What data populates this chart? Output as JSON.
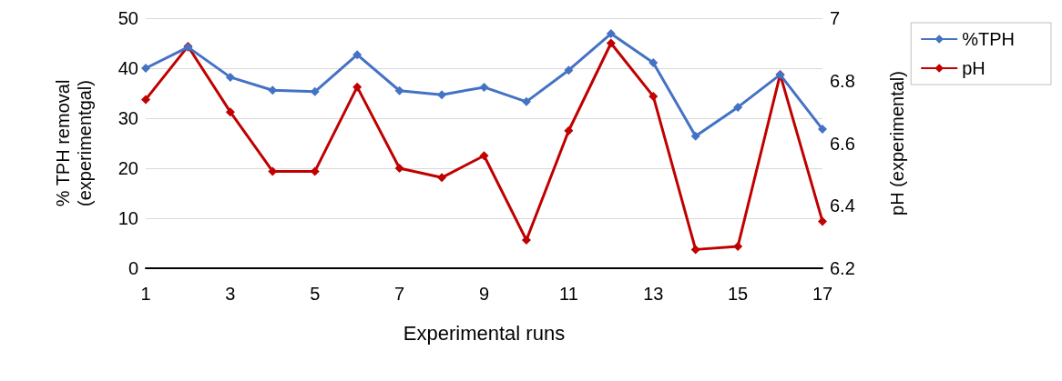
{
  "chart_data": {
    "type": "line",
    "xlabel": "Experimental runs",
    "ylabel": "% TPH removal\n(experimentgal)",
    "y2label": "pH (experimental)",
    "x": [
      1,
      2,
      3,
      4,
      5,
      6,
      7,
      8,
      9,
      10,
      11,
      12,
      13,
      14,
      15,
      16,
      17
    ],
    "xlim": [
      1,
      17
    ],
    "xticks": [
      1,
      3,
      5,
      7,
      9,
      11,
      13,
      15,
      17
    ],
    "ylim": [
      0,
      50
    ],
    "yticks": [
      0,
      10,
      20,
      30,
      40,
      50
    ],
    "y2lim": [
      6.2,
      7
    ],
    "y2ticks": [
      {
        "value": 6.2,
        "label": "6.2"
      },
      {
        "value": 6.4,
        "label": "6.4"
      },
      {
        "value": 6.6,
        "label": "6.6"
      },
      {
        "value": 6.8,
        "label": "6.8"
      },
      {
        "value": 7,
        "label": "7"
      }
    ],
    "series": [
      {
        "name": "%TPH",
        "color": "#4472c4",
        "values": [
          40,
          44.2,
          38.2,
          35.6,
          35.3,
          42.7,
          35.5,
          34.7,
          36.2,
          33.3,
          39.6,
          46.9,
          41.1,
          26.4,
          32.2,
          38.7,
          27.8
        ]
      },
      {
        "name": "pH",
        "color": "#c00000",
        "axis": "y2",
        "values": [
          6.74,
          6.91,
          6.7,
          6.51,
          6.51,
          6.78,
          6.52,
          6.49,
          6.56,
          6.29,
          6.64,
          6.92,
          6.75,
          6.26,
          6.27,
          6.82,
          6.35
        ]
      }
    ],
    "grid": "y",
    "legend": "right",
    "marker": "diamond",
    "line_style": "solid"
  }
}
